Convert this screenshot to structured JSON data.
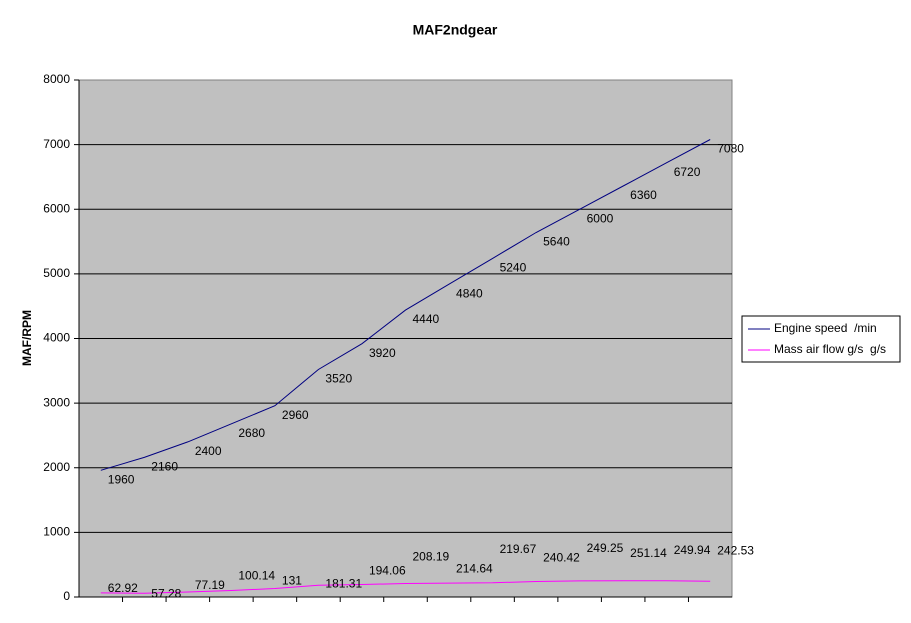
{
  "chart_data": {
    "type": "line",
    "title": "MAF2ndgear",
    "y_label": "MAF/RPM",
    "categories": [
      null,
      null,
      null,
      null,
      null,
      null,
      null,
      null,
      null,
      null,
      null,
      null,
      null,
      null,
      null
    ],
    "series": [
      {
        "name": "Engine speed  /min",
        "color": "#000080",
        "values": [
          1960,
          2160,
          2400,
          2680,
          2960,
          3520,
          3920,
          4440,
          4840,
          5240,
          5640,
          6000,
          6360,
          6720,
          7080
        ]
      },
      {
        "name": "Mass air flow g/s  g/s",
        "color": "#ff00ff",
        "values": [
          62.92,
          57.28,
          77.19,
          100.14,
          131,
          181.31,
          194.06,
          208.19,
          214.64,
          219.67,
          240.42,
          249.25,
          251.14,
          249.94,
          242.53
        ]
      }
    ],
    "ylim": [
      0,
      8000
    ],
    "yticks": [
      0,
      1000,
      2000,
      3000,
      4000,
      5000,
      6000,
      7000,
      8000
    ],
    "grid": true,
    "legend": "right"
  }
}
